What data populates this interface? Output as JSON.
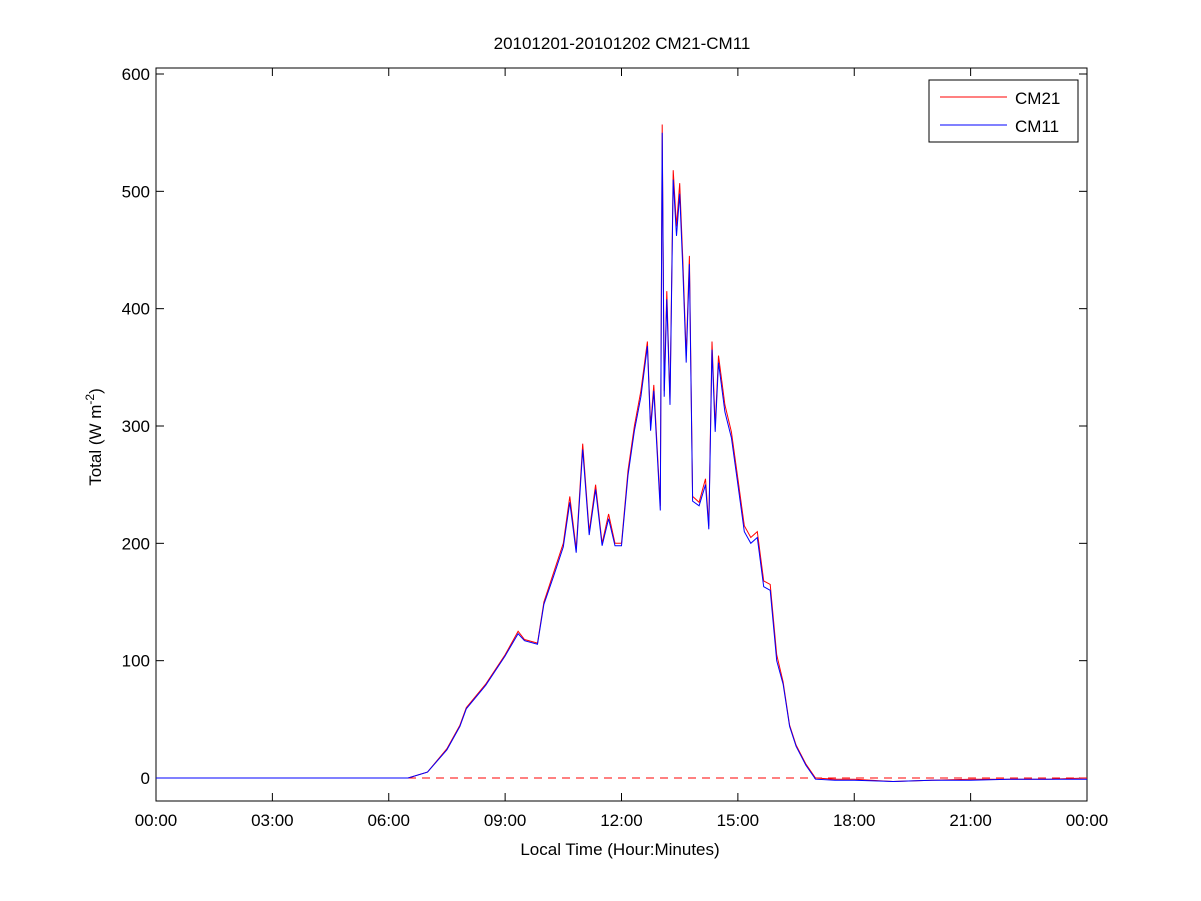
{
  "chart_data": {
    "type": "line",
    "title": "20101201-20101202 CM21-CM11",
    "xlabel": "Local Time (Hour:Minutes)",
    "ylabel": "Total (W m",
    "ylabel_sup": "-2",
    "ylabel_close": ")",
    "xlim": [
      "00:00",
      "24:00"
    ],
    "ylim": [
      -20,
      605
    ],
    "xticks": [
      "00:00",
      "03:00",
      "06:00",
      "09:00",
      "12:00",
      "15:00",
      "18:00",
      "21:00",
      "00:00"
    ],
    "yticks": [
      0,
      100,
      200,
      300,
      400,
      500,
      600
    ],
    "grid": false,
    "legend_position": "top-right",
    "reference_line": {
      "y": 0,
      "style": "dashed",
      "color": "#ff0000"
    },
    "x": [
      "00:00",
      "03:00",
      "06:00",
      "06:30",
      "07:00",
      "07:30",
      "07:50",
      "08:00",
      "08:30",
      "09:00",
      "09:20",
      "09:30",
      "09:50",
      "10:00",
      "10:15",
      "10:30",
      "10:40",
      "10:50",
      "11:00",
      "11:10",
      "11:20",
      "11:30",
      "11:40",
      "11:50",
      "12:00",
      "12:10",
      "12:20",
      "12:30",
      "12:40",
      "12:45",
      "12:50",
      "13:00",
      "13:03",
      "13:06",
      "13:10",
      "13:15",
      "13:20",
      "13:25",
      "13:30",
      "13:35",
      "13:40",
      "13:45",
      "13:50",
      "14:00",
      "14:10",
      "14:15",
      "14:20",
      "14:25",
      "14:30",
      "14:40",
      "14:50",
      "15:00",
      "15:10",
      "15:20",
      "15:30",
      "15:40",
      "15:50",
      "16:00",
      "16:10",
      "16:20",
      "16:30",
      "16:45",
      "17:00",
      "17:30",
      "18:00",
      "19:00",
      "20:00",
      "21:00",
      "22:00",
      "23:00",
      "24:00"
    ],
    "series": [
      {
        "name": "CM21",
        "color": "#ff0000",
        "values": [
          0,
          0,
          0,
          0,
          5,
          25,
          45,
          60,
          80,
          105,
          125,
          118,
          115,
          150,
          175,
          200,
          240,
          195,
          285,
          210,
          250,
          200,
          225,
          200,
          200,
          262,
          300,
          330,
          372,
          300,
          335,
          232,
          557,
          330,
          415,
          322,
          518,
          470,
          507,
          440,
          360,
          445,
          240,
          235,
          255,
          215,
          372,
          300,
          360,
          318,
          295,
          255,
          215,
          205,
          210,
          168,
          165,
          105,
          82,
          45,
          28,
          12,
          0,
          -1,
          -1,
          -3,
          -2,
          -1,
          -1,
          -1,
          0
        ]
      },
      {
        "name": "CM11",
        "color": "#0000ff",
        "values": [
          0,
          0,
          0,
          0,
          5,
          24,
          44,
          59,
          79,
          104,
          123,
          117,
          114,
          148,
          172,
          197,
          235,
          192,
          280,
          207,
          246,
          198,
          221,
          198,
          198,
          258,
          296,
          325,
          368,
          296,
          330,
          228,
          550,
          325,
          408,
          318,
          510,
          462,
          498,
          432,
          354,
          438,
          236,
          232,
          250,
          212,
          365,
          295,
          354,
          312,
          290,
          250,
          210,
          200,
          205,
          163,
          160,
          100,
          80,
          44,
          27,
          11,
          -1,
          -2,
          -2,
          -3,
          -2,
          -2,
          -1,
          -1,
          -1
        ]
      }
    ]
  }
}
